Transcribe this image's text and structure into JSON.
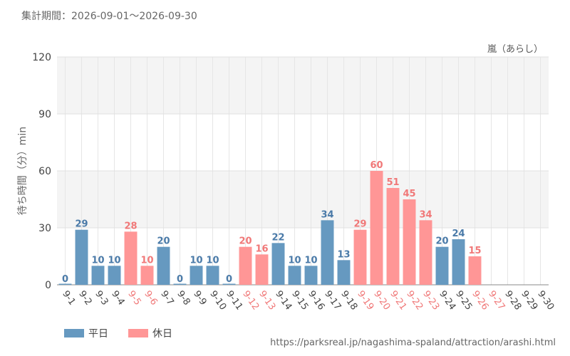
{
  "header": {
    "period_label": "集計期間：2026-09-01～2026-09-30"
  },
  "source_url": "https://parksreal.jp/nagashima-spaland/attraction/arashi.html",
  "colors": {
    "weekday": "#6699c0",
    "holiday": "#ff9696",
    "weekday_text": "#4a7aa8",
    "holiday_text": "#f07878"
  },
  "chart_data": {
    "type": "bar",
    "attraction": "嵐（あらし）",
    "ylabel": "待ち時間（分）min",
    "ylim": [
      0,
      120
    ],
    "yticks": [
      0,
      30,
      60,
      90,
      120
    ],
    "grid": true,
    "legend": [
      {
        "key": "weekday",
        "label": "平日"
      },
      {
        "key": "holiday",
        "label": "休日"
      }
    ],
    "categories": [
      "9-1",
      "9-2",
      "9-3",
      "9-4",
      "9-5",
      "9-6",
      "9-7",
      "9-8",
      "9-9",
      "9-10",
      "9-11",
      "9-12",
      "9-13",
      "9-14",
      "9-15",
      "9-16",
      "9-17",
      "9-18",
      "9-19",
      "9-20",
      "9-21",
      "9-22",
      "9-23",
      "9-24",
      "9-25",
      "9-26",
      "9-27",
      "9-28",
      "9-29",
      "9-30"
    ],
    "values": [
      0,
      29,
      10,
      10,
      28,
      10,
      20,
      0,
      10,
      10,
      0,
      20,
      16,
      22,
      10,
      10,
      34,
      13,
      29,
      60,
      51,
      45,
      34,
      20,
      24,
      15,
      null,
      null,
      null,
      null
    ],
    "day_type": [
      "weekday",
      "weekday",
      "weekday",
      "weekday",
      "holiday",
      "holiday",
      "weekday",
      "weekday",
      "weekday",
      "weekday",
      "weekday",
      "holiday",
      "holiday",
      "weekday",
      "weekday",
      "weekday",
      "weekday",
      "weekday",
      "holiday",
      "holiday",
      "holiday",
      "holiday",
      "holiday",
      "weekday",
      "weekday",
      "holiday",
      "holiday",
      "weekday",
      "weekday",
      "weekday"
    ]
  }
}
